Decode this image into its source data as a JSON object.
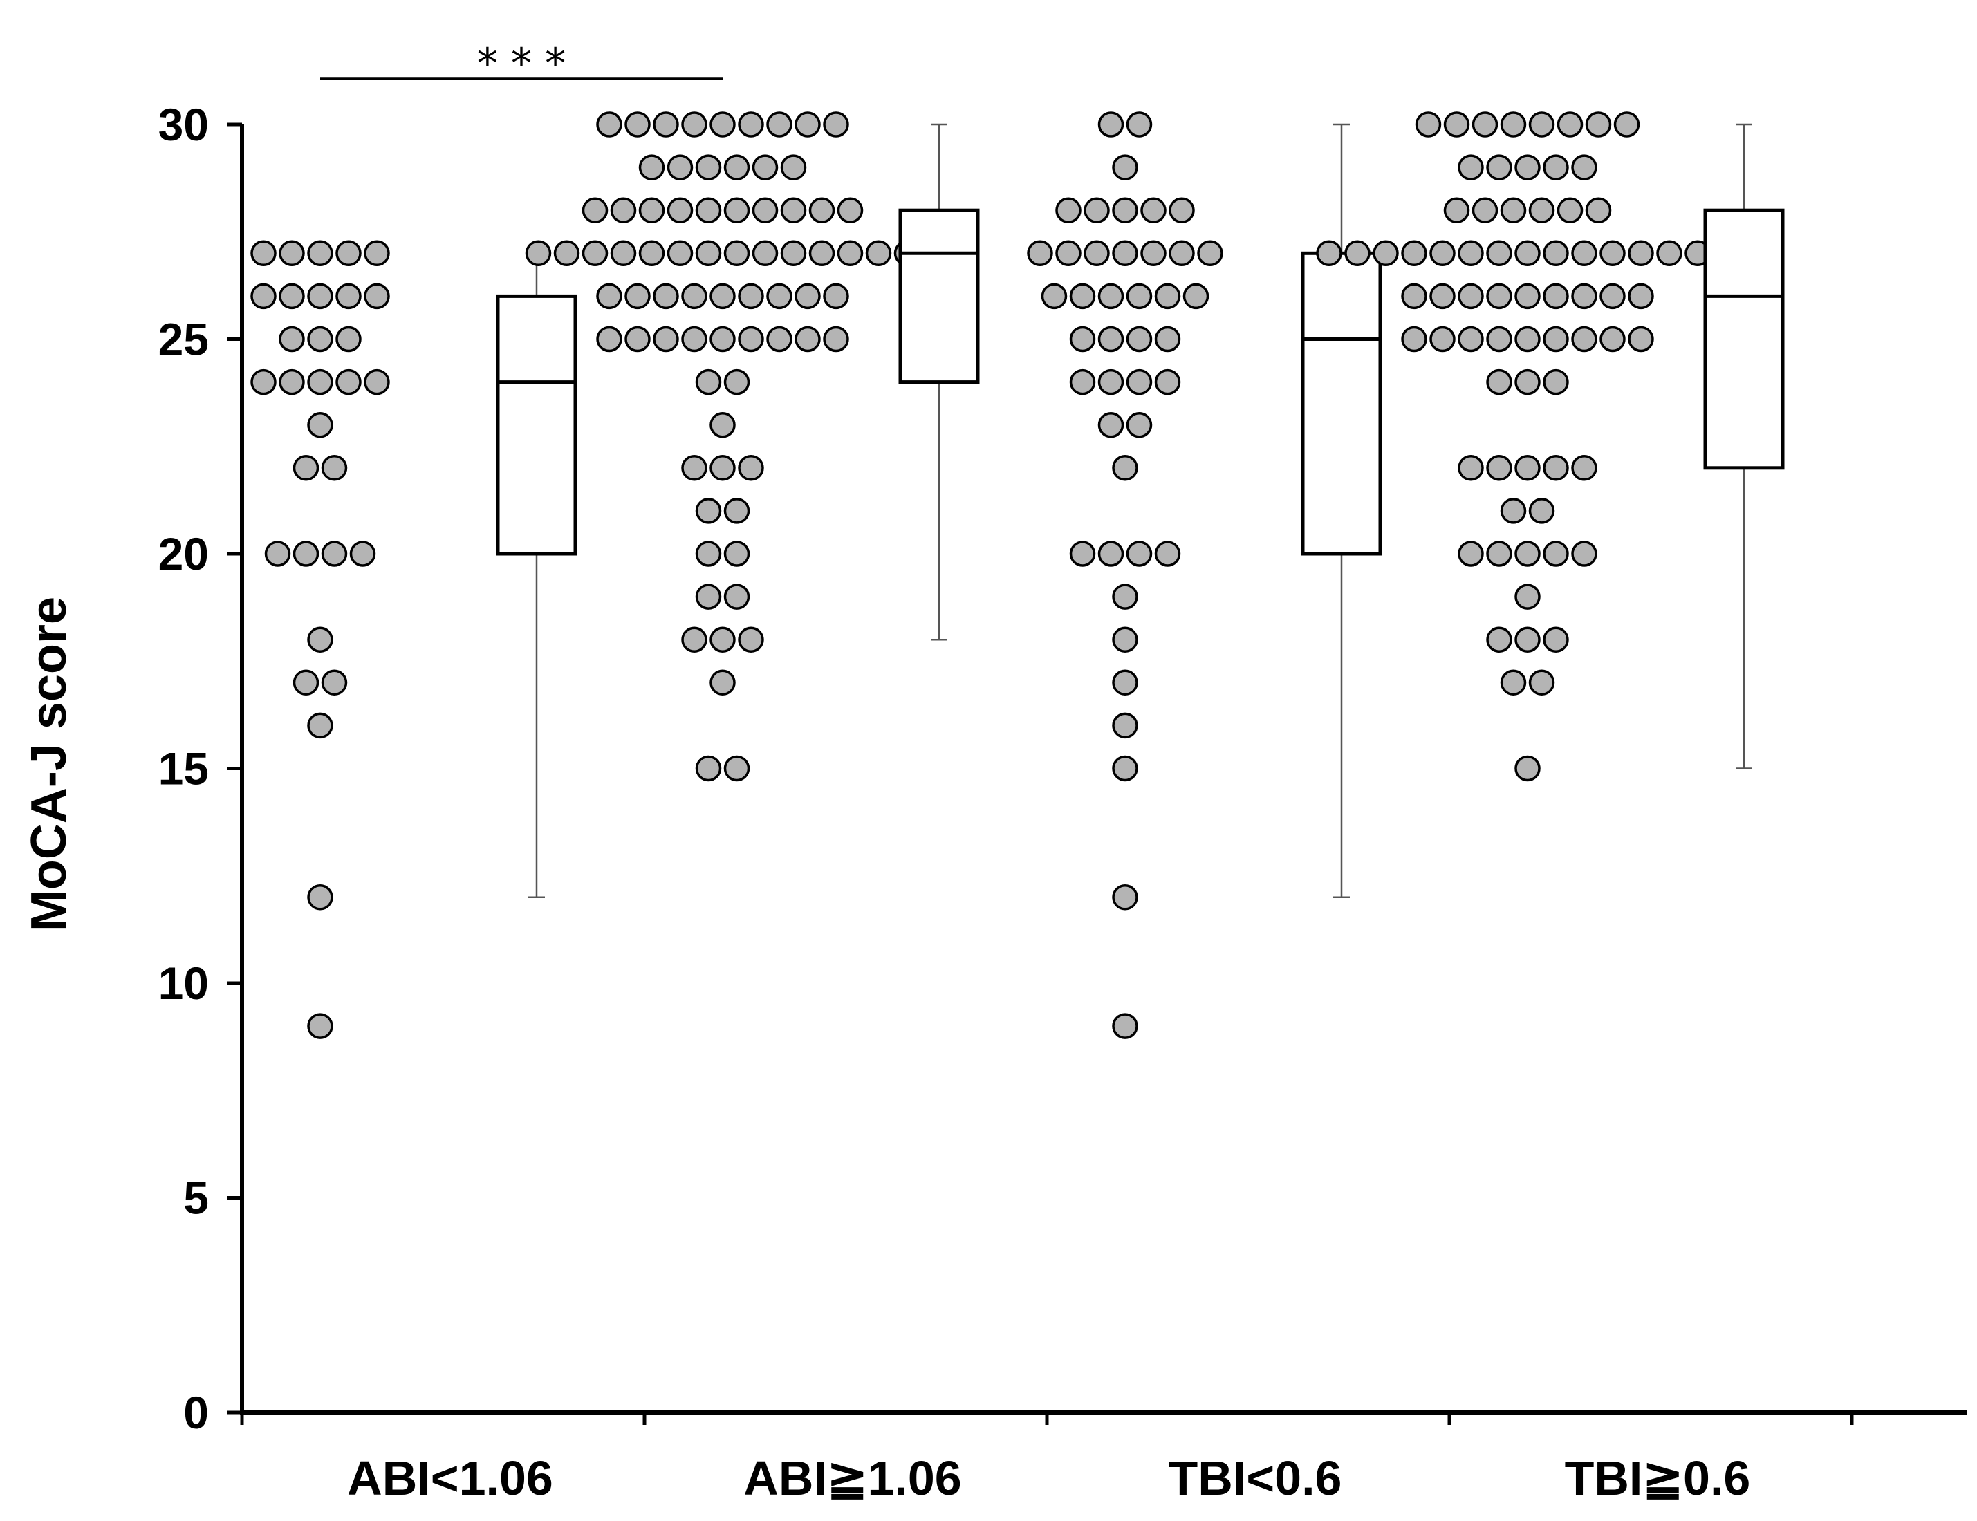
{
  "chart_data": {
    "type": "scatter",
    "title": "",
    "xlabel": "",
    "ylabel": "MoCA-J score",
    "ylim": [
      0,
      30
    ],
    "yticks": [
      0,
      5,
      10,
      15,
      20,
      25,
      30
    ],
    "categories": [
      "ABI<1.06",
      "ABI≧1.06",
      "TBI<0.6",
      "TBI≧0.6"
    ],
    "groups": [
      {
        "name": "ABI<1.06",
        "points": [
          {
            "value": 27,
            "count": 5
          },
          {
            "value": 26,
            "count": 5
          },
          {
            "value": 25,
            "count": 3
          },
          {
            "value": 24,
            "count": 5
          },
          {
            "value": 23,
            "count": 1
          },
          {
            "value": 22,
            "count": 2
          },
          {
            "value": 20,
            "count": 4
          },
          {
            "value": 18,
            "count": 1
          },
          {
            "value": 17,
            "count": 2
          },
          {
            "value": 16,
            "count": 1
          },
          {
            "value": 12,
            "count": 1
          },
          {
            "value": 9,
            "count": 1
          }
        ],
        "box": {
          "min": 12,
          "q1": 20,
          "median": 24,
          "q3": 26,
          "max": 27
        }
      },
      {
        "name": "ABI≧1.06",
        "points": [
          {
            "value": 30,
            "count": 9
          },
          {
            "value": 29,
            "count": 6
          },
          {
            "value": 28,
            "count": 10
          },
          {
            "value": 27,
            "count": 14
          },
          {
            "value": 26,
            "count": 9
          },
          {
            "value": 25,
            "count": 9
          },
          {
            "value": 24,
            "count": 2
          },
          {
            "value": 23,
            "count": 1
          },
          {
            "value": 22,
            "count": 3
          },
          {
            "value": 21,
            "count": 2
          },
          {
            "value": 20,
            "count": 2
          },
          {
            "value": 19,
            "count": 2
          },
          {
            "value": 18,
            "count": 3
          },
          {
            "value": 17,
            "count": 1
          },
          {
            "value": 15,
            "count": 2
          }
        ],
        "box": {
          "min": 18,
          "q1": 24,
          "median": 27,
          "q3": 28,
          "max": 30
        }
      },
      {
        "name": "TBI<0.6",
        "points": [
          {
            "value": 30,
            "count": 2
          },
          {
            "value": 29,
            "count": 1
          },
          {
            "value": 28,
            "count": 5
          },
          {
            "value": 27,
            "count": 7
          },
          {
            "value": 26,
            "count": 6
          },
          {
            "value": 25,
            "count": 4
          },
          {
            "value": 24,
            "count": 4
          },
          {
            "value": 23,
            "count": 2
          },
          {
            "value": 22,
            "count": 1
          },
          {
            "value": 20,
            "count": 4
          },
          {
            "value": 19,
            "count": 1
          },
          {
            "value": 18,
            "count": 1
          },
          {
            "value": 17,
            "count": 1
          },
          {
            "value": 16,
            "count": 1
          },
          {
            "value": 15,
            "count": 1
          },
          {
            "value": 12,
            "count": 1
          },
          {
            "value": 9,
            "count": 1
          }
        ],
        "box": {
          "min": 12,
          "q1": 20,
          "median": 25,
          "q3": 27,
          "max": 30
        }
      },
      {
        "name": "TBI≧0.6",
        "points": [
          {
            "value": 30,
            "count": 8
          },
          {
            "value": 29,
            "count": 5
          },
          {
            "value": 28,
            "count": 6
          },
          {
            "value": 27,
            "count": 15
          },
          {
            "value": 26,
            "count": 9
          },
          {
            "value": 25,
            "count": 9
          },
          {
            "value": 24,
            "count": 3
          },
          {
            "value": 22,
            "count": 5
          },
          {
            "value": 21,
            "count": 2
          },
          {
            "value": 20,
            "count": 5
          },
          {
            "value": 19,
            "count": 1
          },
          {
            "value": 18,
            "count": 3
          },
          {
            "value": 17,
            "count": 2
          },
          {
            "value": 15,
            "count": 1
          }
        ],
        "box": {
          "min": 15,
          "q1": 22,
          "median": 26,
          "q3": 28,
          "max": 30
        }
      }
    ],
    "annotations": [
      {
        "text": "* * *",
        "from": "ABI<1.06",
        "to": "ABI≧1.06"
      }
    ]
  }
}
